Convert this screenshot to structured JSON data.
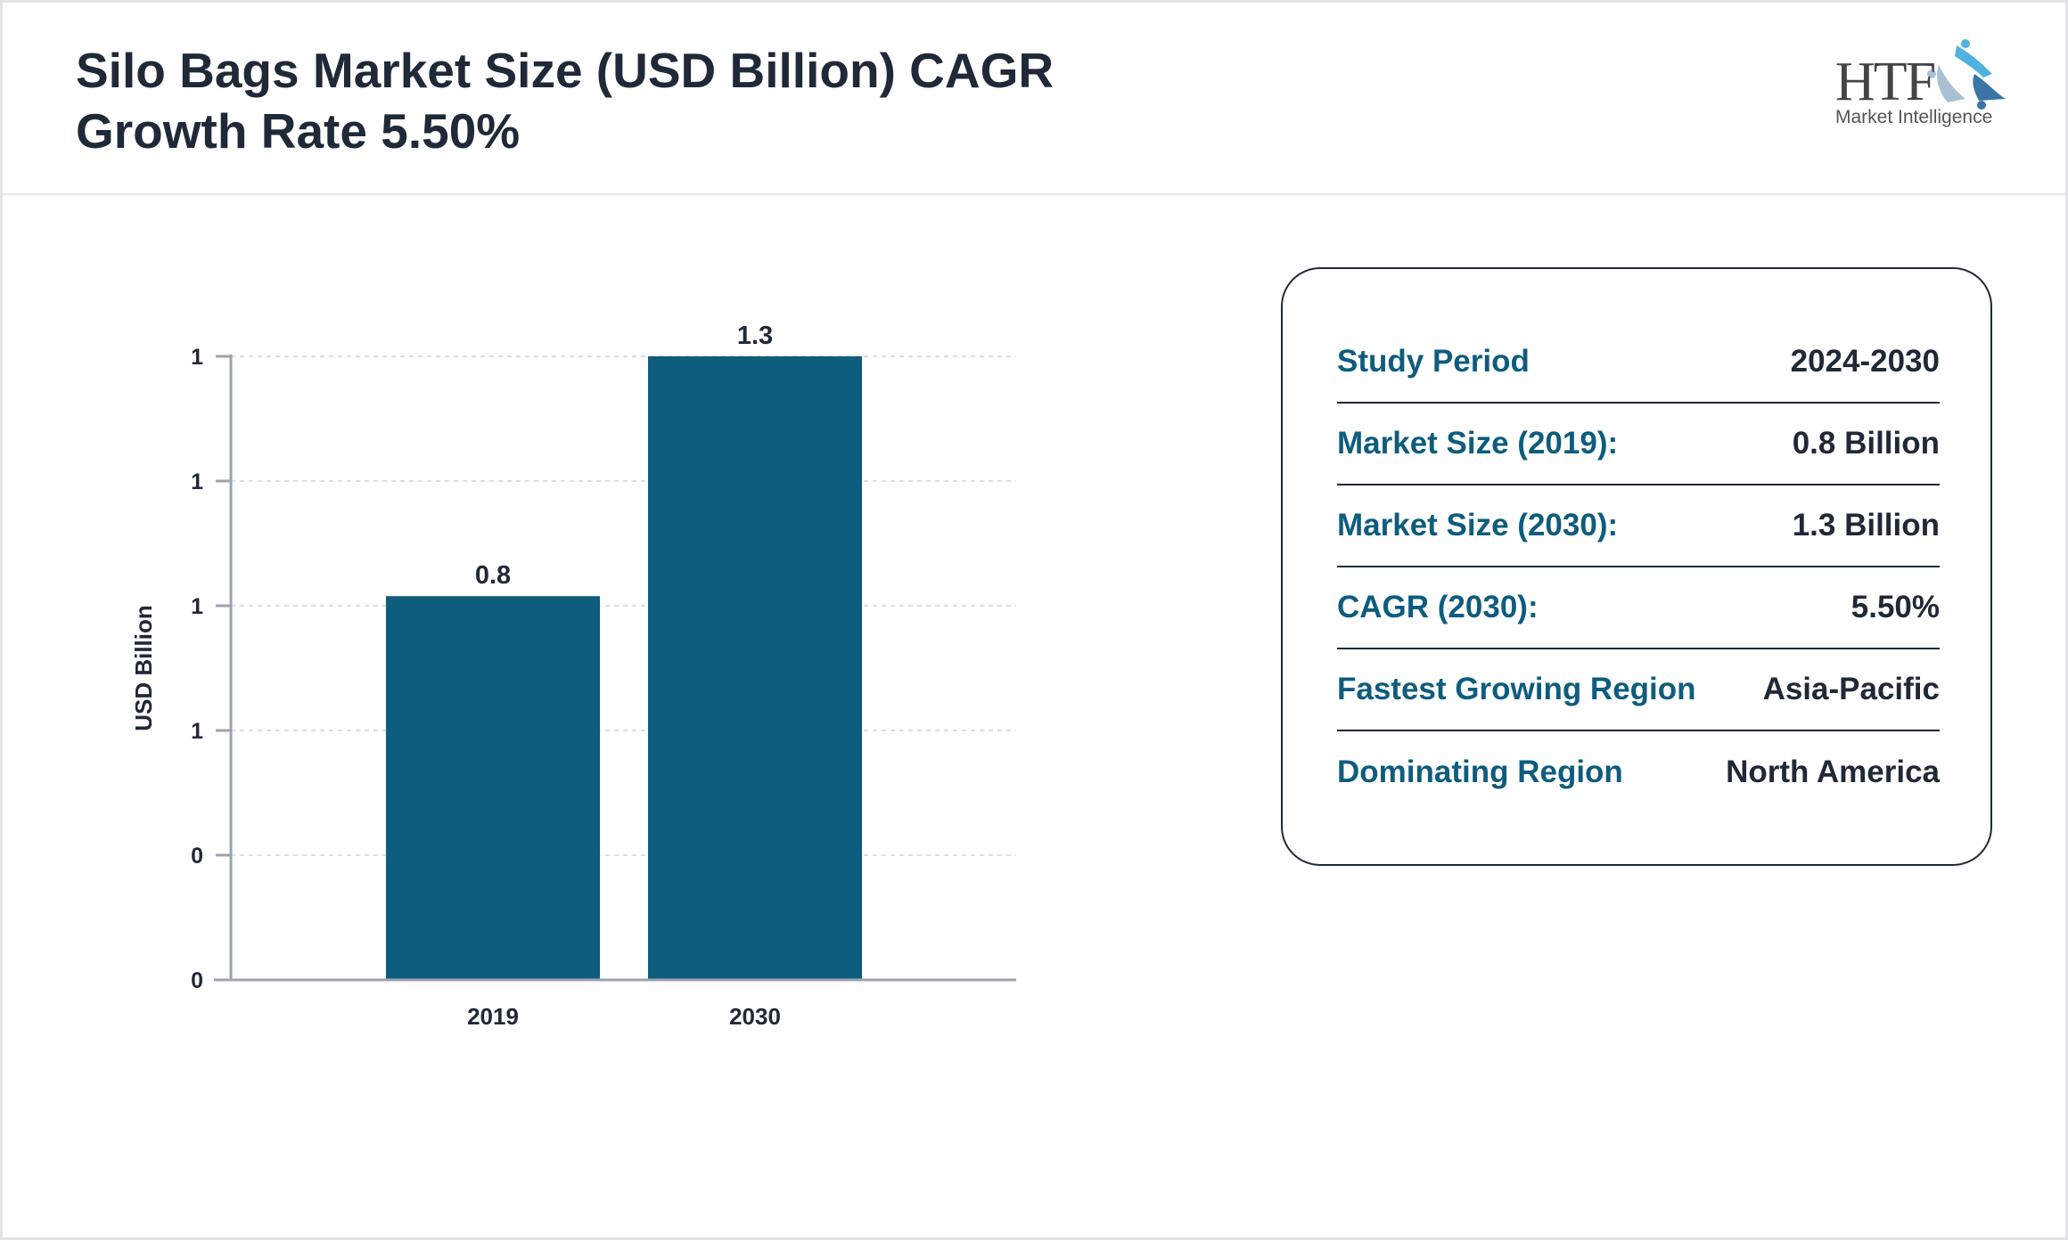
{
  "header": {
    "title": "Silo Bags Market Size (USD Billion) CAGR Growth Rate 5.50%"
  },
  "logo": {
    "text": "HTF",
    "subtitle": "Market Intelligence"
  },
  "summary": {
    "rows": [
      {
        "label": "Study Period",
        "value": "2024-2030"
      },
      {
        "label": "Market Size (2019):",
        "value": "0.8 Billion"
      },
      {
        "label": "Market Size (2030):",
        "value": "1.3 Billion"
      },
      {
        "label": "CAGR (2030):",
        "value": "5.50%"
      },
      {
        "label": "Fastest Growing Region",
        "value": "Asia-Pacific"
      },
      {
        "label": "Dominating Region",
        "value": "North America"
      }
    ]
  },
  "chart_data": {
    "type": "bar",
    "categories": [
      "2019",
      "2030"
    ],
    "values": [
      0.8,
      1.3
    ],
    "data_labels": [
      "0.8",
      "1.3"
    ],
    "ylabel": "USD Billion",
    "xlabel": "",
    "ylim": [
      0,
      1.3
    ],
    "yticks": [
      0,
      0.26,
      0.52,
      0.78,
      1.04,
      1.3
    ],
    "ytick_labels": [
      "0",
      "0",
      "1",
      "1",
      "1",
      "1"
    ],
    "grid": true,
    "bar_color": "#0e5c7e"
  }
}
